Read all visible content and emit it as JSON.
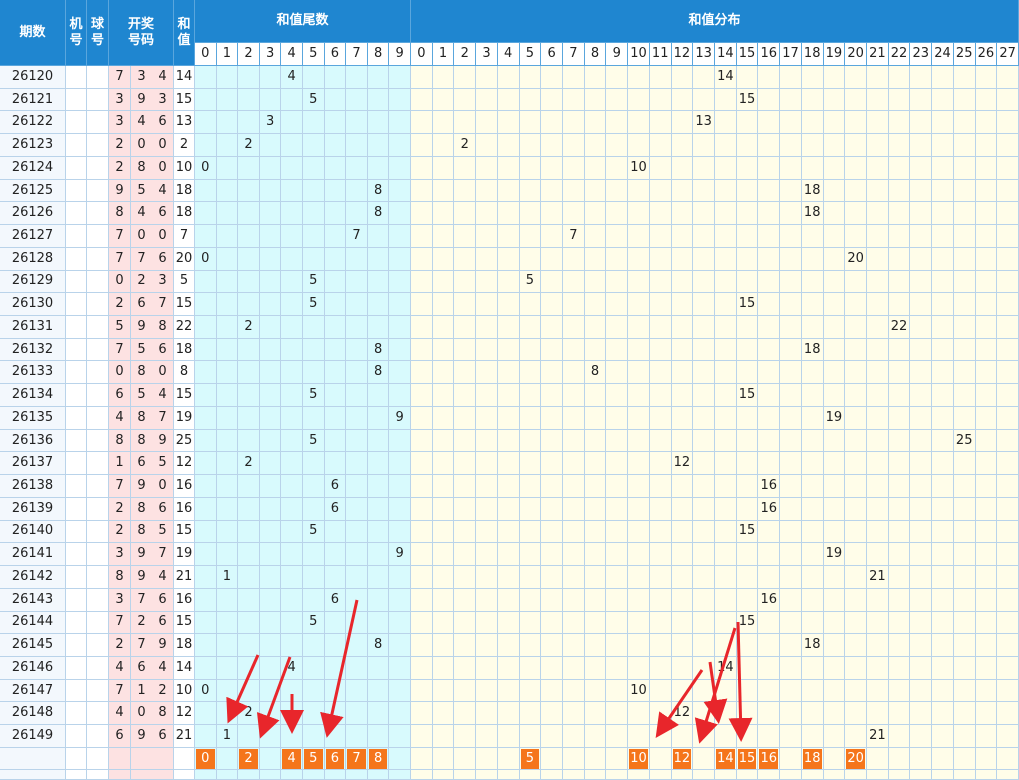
{
  "header": {
    "period": "期数",
    "machine": "机号",
    "ball": "球号",
    "draw": "开奖号码",
    "sum": "和值",
    "tail_title": "和值尾数",
    "dist_title": "和值分布",
    "tail_cols": [
      0,
      1,
      2,
      3,
      4,
      5,
      6,
      7,
      8,
      9
    ],
    "dist_cols": [
      0,
      1,
      2,
      3,
      4,
      5,
      6,
      7,
      8,
      9,
      10,
      11,
      12,
      13,
      14,
      15,
      16,
      17,
      18,
      19,
      20,
      21,
      22,
      23,
      24,
      25,
      26,
      27
    ]
  },
  "rows": [
    {
      "period": "26120",
      "numbers": [
        7,
        3,
        4
      ],
      "sum": 14,
      "tail": 4
    },
    {
      "period": "26121",
      "numbers": [
        3,
        9,
        3
      ],
      "sum": 15,
      "tail": 5
    },
    {
      "period": "26122",
      "numbers": [
        3,
        4,
        6
      ],
      "sum": 13,
      "tail": 3
    },
    {
      "period": "26123",
      "numbers": [
        2,
        0,
        0
      ],
      "sum": 2,
      "tail": 2
    },
    {
      "period": "26124",
      "numbers": [
        2,
        8,
        0
      ],
      "sum": 10,
      "tail": 0
    },
    {
      "period": "26125",
      "numbers": [
        9,
        5,
        4
      ],
      "sum": 18,
      "tail": 8
    },
    {
      "period": "26126",
      "numbers": [
        8,
        4,
        6
      ],
      "sum": 18,
      "tail": 8
    },
    {
      "period": "26127",
      "numbers": [
        7,
        0,
        0
      ],
      "sum": 7,
      "tail": 7
    },
    {
      "period": "26128",
      "numbers": [
        7,
        7,
        6
      ],
      "sum": 20,
      "tail": 0
    },
    {
      "period": "26129",
      "numbers": [
        0,
        2,
        3
      ],
      "sum": 5,
      "tail": 5
    },
    {
      "period": "26130",
      "numbers": [
        2,
        6,
        7
      ],
      "sum": 15,
      "tail": 5
    },
    {
      "period": "26131",
      "numbers": [
        5,
        9,
        8
      ],
      "sum": 22,
      "tail": 2
    },
    {
      "period": "26132",
      "numbers": [
        7,
        5,
        6
      ],
      "sum": 18,
      "tail": 8
    },
    {
      "period": "26133",
      "numbers": [
        0,
        8,
        0
      ],
      "sum": 8,
      "tail": 8
    },
    {
      "period": "26134",
      "numbers": [
        6,
        5,
        4
      ],
      "sum": 15,
      "tail": 5
    },
    {
      "period": "26135",
      "numbers": [
        4,
        8,
        7
      ],
      "sum": 19,
      "tail": 9
    },
    {
      "period": "26136",
      "numbers": [
        8,
        8,
        9
      ],
      "sum": 25,
      "tail": 5
    },
    {
      "period": "26137",
      "numbers": [
        1,
        6,
        5
      ],
      "sum": 12,
      "tail": 2
    },
    {
      "period": "26138",
      "numbers": [
        7,
        9,
        0
      ],
      "sum": 16,
      "tail": 6
    },
    {
      "period": "26139",
      "numbers": [
        2,
        8,
        6
      ],
      "sum": 16,
      "tail": 6
    },
    {
      "period": "26140",
      "numbers": [
        2,
        8,
        5
      ],
      "sum": 15,
      "tail": 5
    },
    {
      "period": "26141",
      "numbers": [
        3,
        9,
        7
      ],
      "sum": 19,
      "tail": 9
    },
    {
      "period": "26142",
      "numbers": [
        8,
        9,
        4
      ],
      "sum": 21,
      "tail": 1
    },
    {
      "period": "26143",
      "numbers": [
        3,
        7,
        6
      ],
      "sum": 16,
      "tail": 6
    },
    {
      "period": "26144",
      "numbers": [
        7,
        2,
        6
      ],
      "sum": 15,
      "tail": 5
    },
    {
      "period": "26145",
      "numbers": [
        2,
        7,
        9
      ],
      "sum": 18,
      "tail": 8
    },
    {
      "period": "26146",
      "numbers": [
        4,
        6,
        4
      ],
      "sum": 14,
      "tail": 4
    },
    {
      "period": "26147",
      "numbers": [
        7,
        1,
        2
      ],
      "sum": 10,
      "tail": 0
    },
    {
      "period": "26148",
      "numbers": [
        4,
        0,
        8
      ],
      "sum": 12,
      "tail": 2
    },
    {
      "period": "26149",
      "numbers": [
        6,
        9,
        6
      ],
      "sum": 21,
      "tail": 1
    }
  ],
  "bottom_highlights": {
    "tail": [
      0,
      2,
      4,
      5,
      6,
      7,
      8
    ],
    "dist": [
      5,
      10,
      12,
      14,
      15,
      16,
      18,
      20
    ]
  }
}
